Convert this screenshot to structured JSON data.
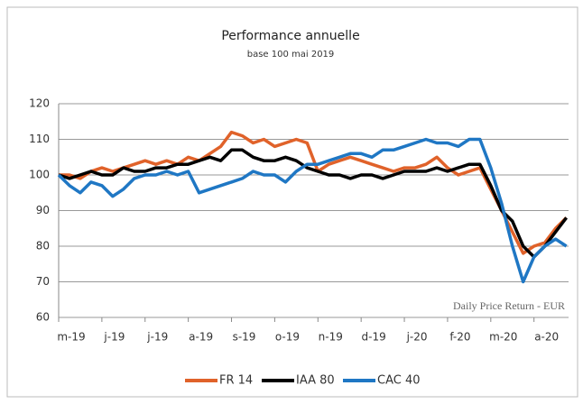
{
  "chart_data": {
    "type": "line",
    "title": "Performance annuelle",
    "subtitle": "base 100 mai 2019",
    "annotation": "Daily Price Return - EUR",
    "x": [
      0,
      0.25,
      0.5,
      0.75,
      1,
      1.25,
      1.5,
      1.75,
      2,
      2.25,
      2.5,
      2.75,
      3,
      3.25,
      3.5,
      3.75,
      4,
      4.25,
      4.5,
      4.75,
      5,
      5.25,
      5.5,
      5.75,
      6,
      6.25,
      6.5,
      6.75,
      7,
      7.25,
      7.5,
      7.75,
      8,
      8.25,
      8.5,
      8.75,
      9,
      9.25,
      9.5,
      9.75,
      10,
      10.25,
      10.5,
      10.75,
      11,
      11.25,
      11.5,
      11.75
    ],
    "series": [
      {
        "name": "FR 14",
        "color": "#e0622a",
        "values": [
          100,
          100,
          99,
          101,
          102,
          101,
          102,
          103,
          104,
          103,
          104,
          103,
          105,
          104,
          106,
          108,
          112,
          111,
          109,
          110,
          108,
          109,
          110,
          109,
          101,
          103,
          104,
          105,
          104,
          103,
          102,
          101,
          102,
          102,
          103,
          105,
          102,
          100,
          101,
          102,
          96,
          90,
          84,
          78,
          80,
          81,
          85,
          88
        ]
      },
      {
        "name": "IAA 80",
        "color": "#000000",
        "values": [
          100,
          99,
          100,
          101,
          100,
          100,
          102,
          101,
          101,
          102,
          102,
          103,
          103,
          104,
          105,
          104,
          107,
          107,
          105,
          104,
          104,
          105,
          104,
          102,
          101,
          100,
          100,
          99,
          100,
          100,
          99,
          100,
          101,
          101,
          101,
          102,
          101,
          102,
          103,
          103,
          97,
          90,
          87,
          80,
          77,
          80,
          84,
          88
        ]
      },
      {
        "name": "CAC 40",
        "color": "#1f77c4",
        "values": [
          100,
          97,
          95,
          98,
          97,
          94,
          96,
          99,
          100,
          100,
          101,
          100,
          101,
          95,
          96,
          97,
          98,
          99,
          101,
          100,
          100,
          98,
          101,
          103,
          103,
          104,
          105,
          106,
          106,
          105,
          107,
          107,
          108,
          109,
          110,
          109,
          109,
          108,
          110,
          110,
          102,
          92,
          80,
          70,
          77,
          80,
          82,
          80
        ]
      }
    ],
    "xlim": [
      0,
      11.8
    ],
    "xticks": [
      {
        "value": 0,
        "label": "m-19"
      },
      {
        "value": 1,
        "label": "j-19"
      },
      {
        "value": 2,
        "label": "j-19"
      },
      {
        "value": 3,
        "label": "a-19"
      },
      {
        "value": 4,
        "label": "s-19"
      },
      {
        "value": 5,
        "label": "o-19"
      },
      {
        "value": 6,
        "label": "n-19"
      },
      {
        "value": 7,
        "label": "d-19"
      },
      {
        "value": 8,
        "label": "j-20"
      },
      {
        "value": 9,
        "label": "f-20"
      },
      {
        "value": 10,
        "label": "m-20"
      },
      {
        "value": 11,
        "label": "a-20"
      }
    ],
    "ylim": [
      60,
      120
    ],
    "yticks": [
      60,
      70,
      80,
      90,
      100,
      110,
      120
    ],
    "grid": true,
    "legend": "bottom"
  }
}
